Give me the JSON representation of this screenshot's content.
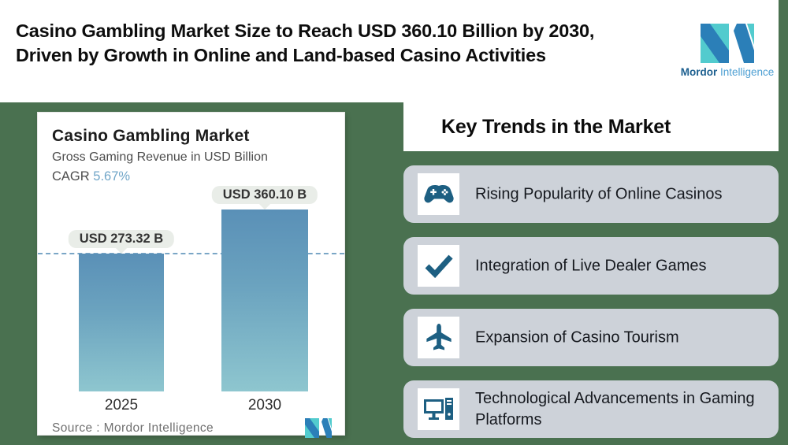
{
  "header": {
    "title_line1": "Casino Gambling Market Size to Reach USD 360.10 Billion by 2030,",
    "title_line2": "Driven by Growth in Online and Land-based Casino Activities",
    "logo": {
      "brand_bold": "Mordor",
      "brand_light": "Intelligence"
    }
  },
  "key_trends": {
    "heading": "Key Trends in the Market",
    "items": [
      {
        "icon": "gamepad-icon",
        "label": "Rising Popularity of Online Casinos"
      },
      {
        "icon": "checkmark-icon",
        "label": "Integration of Live Dealer Games"
      },
      {
        "icon": "airplane-icon",
        "label": "Expansion of Casino Tourism"
      },
      {
        "icon": "computer-icon",
        "label": "Technological Advancements in Gaming Platforms"
      }
    ]
  },
  "chart_card": {
    "title": "Casino Gambling Market",
    "subtitle": "Gross Gaming Revenue in USD Billion",
    "cagr_label": "CAGR",
    "cagr_value": "5.67%",
    "source": "Source :  Mordor Intelligence"
  },
  "chart_data": {
    "type": "bar",
    "title": "Casino Gambling Market",
    "ylabel": "Gross Gaming Revenue in USD Billion",
    "categories": [
      "2025",
      "2030"
    ],
    "values": [
      273.32,
      360.1
    ],
    "bar_labels": [
      "USD 273.32 B",
      "USD 360.10 B"
    ],
    "cagr": "5.67%",
    "reference_line": {
      "value": 273.32,
      "style": "dashed"
    },
    "legend": false,
    "gridlines": false,
    "ylim": [
      0,
      400
    ]
  },
  "colors": {
    "background_green": "#4a7150",
    "row_gray": "#cdd2d9",
    "icon_blue": "#1d5f82",
    "bar_top": "#5a90b7",
    "bar_bottom": "#8ec6cf",
    "cagr_blue": "#71a6c8",
    "logo_teal": "#52cbce",
    "logo_blue": "#2b7fb8"
  }
}
